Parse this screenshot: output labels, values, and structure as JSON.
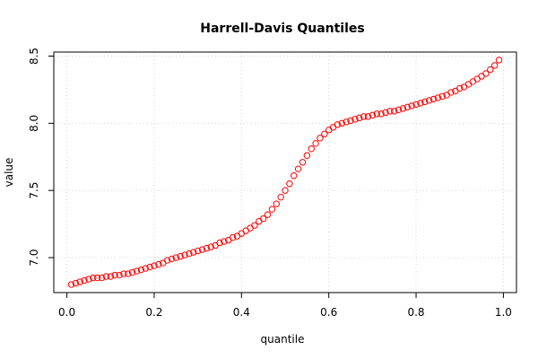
{
  "chart_data": {
    "type": "scatter",
    "title": "Harrell-Davis Quantiles",
    "xlabel": "quantile",
    "ylabel": "value",
    "xlim": [
      -0.03,
      1.03
    ],
    "ylim": [
      6.74,
      8.53
    ],
    "x_ticks": [
      0.0,
      0.2,
      0.4,
      0.6,
      0.8,
      1.0
    ],
    "x_tick_labels": [
      "0.0",
      "0.2",
      "0.4",
      "0.6",
      "0.8",
      "1.0"
    ],
    "y_ticks": [
      7.0,
      7.5,
      8.0,
      8.5
    ],
    "y_tick_labels": [
      "7.0",
      "7.5",
      "8.0",
      "8.5"
    ],
    "grid": true,
    "marker_color": "#ff0000",
    "series": [
      {
        "x": [
          0.01,
          0.02,
          0.03,
          0.04,
          0.05,
          0.06,
          0.07,
          0.08,
          0.09,
          0.1,
          0.11,
          0.12,
          0.13,
          0.14,
          0.15,
          0.16,
          0.17,
          0.18,
          0.19,
          0.2,
          0.21,
          0.22,
          0.23,
          0.24,
          0.25,
          0.26,
          0.27,
          0.28,
          0.29,
          0.3,
          0.31,
          0.32,
          0.33,
          0.34,
          0.35,
          0.36,
          0.37,
          0.38,
          0.39,
          0.4,
          0.41,
          0.42,
          0.43,
          0.44,
          0.45,
          0.46,
          0.47,
          0.48,
          0.49,
          0.5,
          0.51,
          0.52,
          0.53,
          0.54,
          0.55,
          0.56,
          0.57,
          0.58,
          0.59,
          0.6,
          0.61,
          0.62,
          0.63,
          0.64,
          0.65,
          0.66,
          0.67,
          0.68,
          0.69,
          0.7,
          0.71,
          0.72,
          0.73,
          0.74,
          0.75,
          0.76,
          0.77,
          0.78,
          0.79,
          0.8,
          0.81,
          0.82,
          0.83,
          0.84,
          0.85,
          0.86,
          0.87,
          0.88,
          0.89,
          0.9,
          0.91,
          0.92,
          0.93,
          0.94,
          0.95,
          0.96,
          0.97,
          0.98,
          0.99
        ],
        "values": [
          6.8,
          6.81,
          6.82,
          6.83,
          6.84,
          6.85,
          6.85,
          6.85,
          6.86,
          6.86,
          6.87,
          6.87,
          6.88,
          6.88,
          6.89,
          6.9,
          6.91,
          6.92,
          6.93,
          6.94,
          6.95,
          6.96,
          6.98,
          6.99,
          7.0,
          7.01,
          7.02,
          7.03,
          7.04,
          7.05,
          7.06,
          7.07,
          7.08,
          7.09,
          7.11,
          7.12,
          7.13,
          7.15,
          7.16,
          7.18,
          7.2,
          7.22,
          7.24,
          7.27,
          7.29,
          7.32,
          7.36,
          7.4,
          7.45,
          7.5,
          7.55,
          7.61,
          7.66,
          7.71,
          7.76,
          7.81,
          7.85,
          7.89,
          7.92,
          7.95,
          7.97,
          7.99,
          8.0,
          8.01,
          8.02,
          8.03,
          8.04,
          8.05,
          8.05,
          8.06,
          8.07,
          8.07,
          8.08,
          8.09,
          8.09,
          8.1,
          8.11,
          8.12,
          8.13,
          8.14,
          8.15,
          8.16,
          8.17,
          8.18,
          8.19,
          8.2,
          8.21,
          8.23,
          8.24,
          8.26,
          8.27,
          8.29,
          8.31,
          8.33,
          8.35,
          8.37,
          8.4,
          8.43,
          8.47
        ]
      }
    ]
  }
}
